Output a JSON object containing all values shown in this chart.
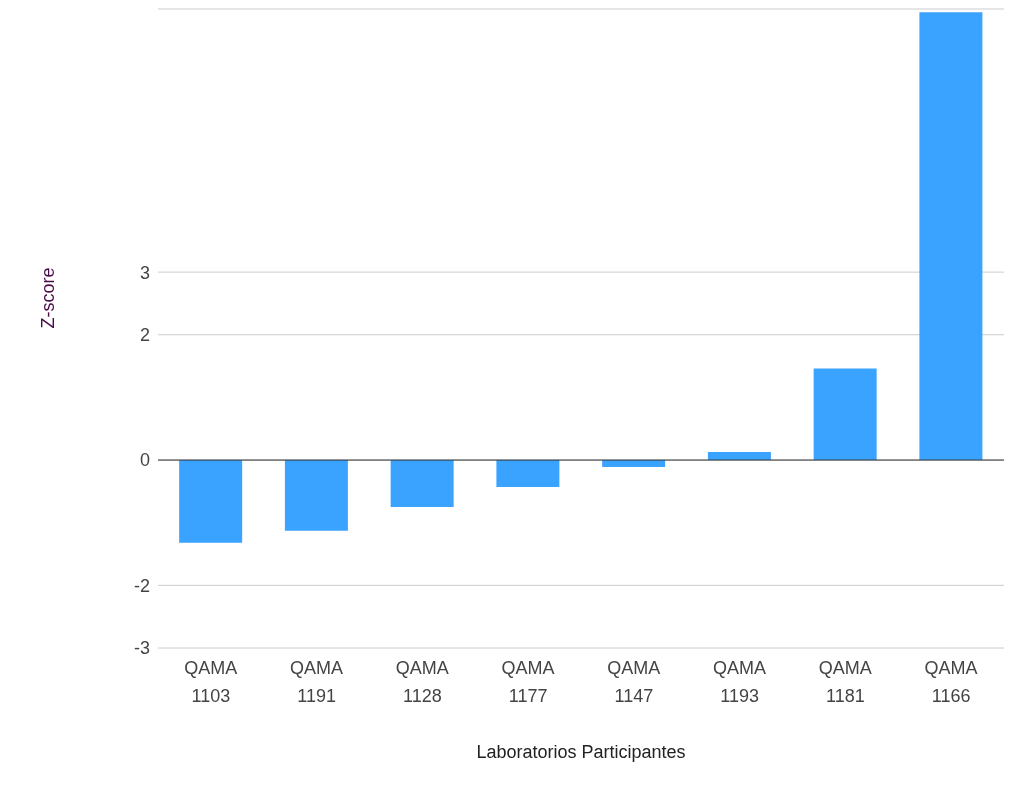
{
  "chart_data": {
    "type": "bar",
    "xlabel": "Laboratorios Participantes",
    "ylabel": "Z-score",
    "categories": [
      "QAMA 1103",
      "QAMA 1191",
      "QAMA 1128",
      "QAMA 1177",
      "QAMA 1147",
      "QAMA 1193",
      "QAMA 1181",
      "QAMA 1166"
    ],
    "values": [
      -1.32,
      -1.13,
      -0.75,
      -0.43,
      -0.11,
      0.13,
      1.46,
      7.15
    ],
    "color": "#3aa2ff",
    "ylim": [
      -3,
      7.2
    ],
    "yticks": [
      -3,
      -2,
      0,
      2,
      3
    ],
    "grid": "y",
    "legend": false
  }
}
